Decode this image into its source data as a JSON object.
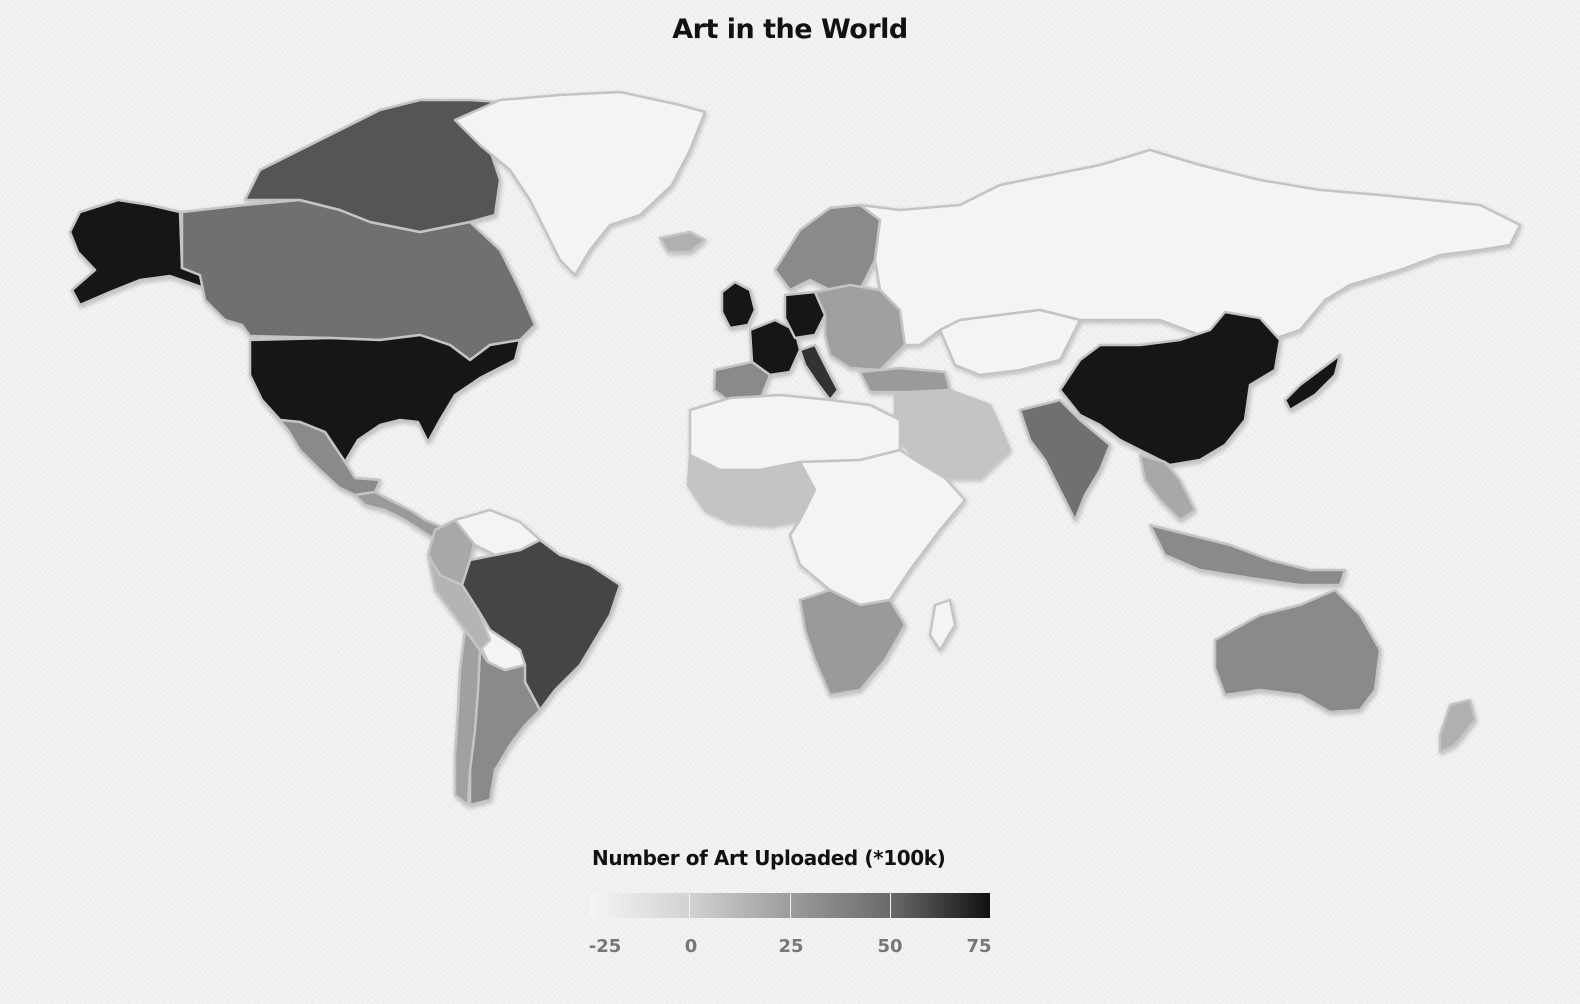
{
  "title": "Art in the World",
  "chart_data": {
    "type": "choropleth",
    "title": "Art in the World",
    "legend": {
      "title": "Number of Art Uploaded (*100k)",
      "ticks": [
        "-25",
        "0",
        "25",
        "50",
        "75"
      ],
      "range": [
        -25,
        75
      ],
      "colors": [
        "#f4f4f4",
        "#cfcfcf",
        "#9a9a9a",
        "#666666",
        "#141414"
      ]
    },
    "regions": [
      {
        "name": "Alaska (USA)",
        "shade": "#141414"
      },
      {
        "name": "Canada",
        "shade": "#707070"
      },
      {
        "name": "Canadian Arctic",
        "shade": "#555555"
      },
      {
        "name": "Greenland",
        "shade": "#f4f4f4"
      },
      {
        "name": "United States",
        "shade": "#141414"
      },
      {
        "name": "Mexico",
        "shade": "#8a8a8a"
      },
      {
        "name": "Central America",
        "shade": "#9a9a9a"
      },
      {
        "name": "Brazil",
        "shade": "#444444"
      },
      {
        "name": "Argentina",
        "shade": "#8a8a8a"
      },
      {
        "name": "Chile",
        "shade": "#a0a0a0"
      },
      {
        "name": "Bolivia",
        "shade": "#f4f4f4"
      },
      {
        "name": "Peru",
        "shade": "#b4b4b4"
      },
      {
        "name": "Colombia",
        "shade": "#a8a8a8"
      },
      {
        "name": "Venezuela",
        "shade": "#f4f4f4"
      },
      {
        "name": "Iceland",
        "shade": "#b0b0b0"
      },
      {
        "name": "United Kingdom",
        "shade": "#141414"
      },
      {
        "name": "France",
        "shade": "#141414"
      },
      {
        "name": "Germany",
        "shade": "#141414"
      },
      {
        "name": "Spain",
        "shade": "#8a8a8a"
      },
      {
        "name": "Italy",
        "shade": "#333333"
      },
      {
        "name": "Scandinavia",
        "shade": "#8a8a8a"
      },
      {
        "name": "Eastern Europe",
        "shade": "#a0a0a0"
      },
      {
        "name": "Russia",
        "shade": "#f4f4f4"
      },
      {
        "name": "Kazakhstan",
        "shade": "#f4f4f4"
      },
      {
        "name": "Turkey",
        "shade": "#9a9a9a"
      },
      {
        "name": "Middle East",
        "shade": "#c4c4c4"
      },
      {
        "name": "North Africa",
        "shade": "#f4f4f4"
      },
      {
        "name": "West Africa",
        "shade": "#c4c4c4"
      },
      {
        "name": "Central Africa",
        "shade": "#f4f4f4"
      },
      {
        "name": "Southern Africa",
        "shade": "#9a9a9a"
      },
      {
        "name": "Madagascar",
        "shade": "#f4f4f4"
      },
      {
        "name": "India",
        "shade": "#707070"
      },
      {
        "name": "China",
        "shade": "#141414"
      },
      {
        "name": "Japan",
        "shade": "#141414"
      },
      {
        "name": "Southeast Asia",
        "shade": "#a8a8a8"
      },
      {
        "name": "Indonesia",
        "shade": "#8a8a8a"
      },
      {
        "name": "Australia",
        "shade": "#8a8a8a"
      },
      {
        "name": "New Zealand",
        "shade": "#b0b0b0"
      }
    ]
  }
}
